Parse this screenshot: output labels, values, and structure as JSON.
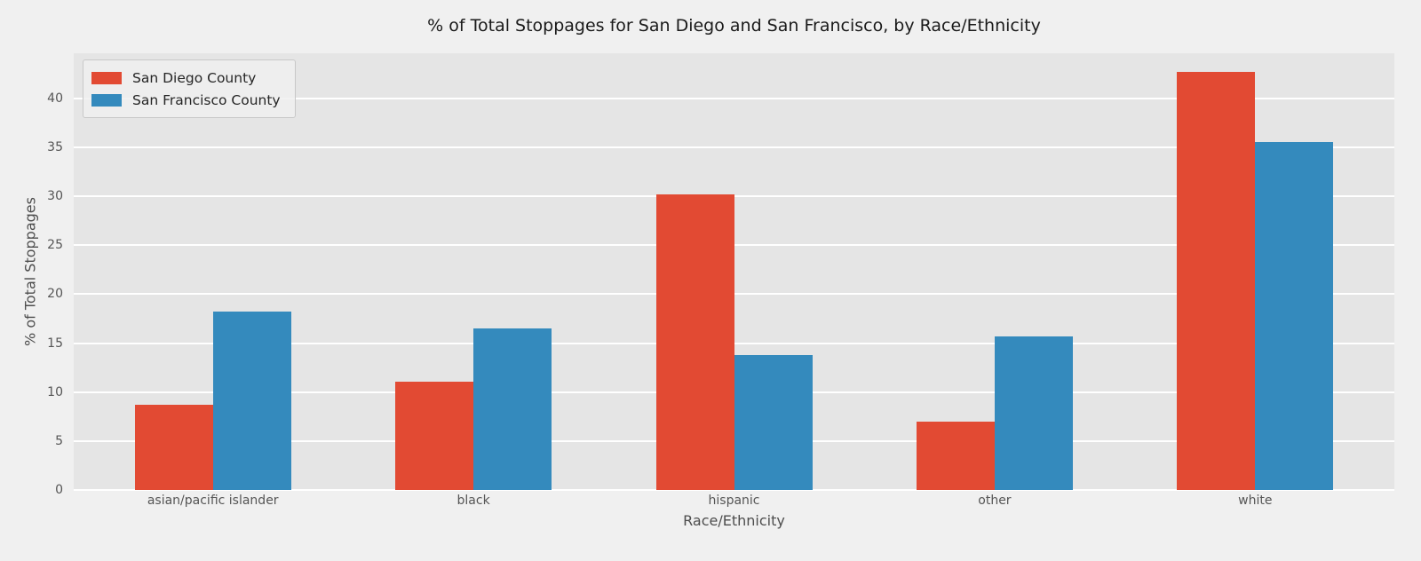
{
  "chart_data": {
    "type": "bar",
    "title": "% of Total Stoppages for San Diego and San Francisco, by Race/Ethnicity",
    "xlabel": "Race/Ethnicity",
    "ylabel": "% of Total Stoppages",
    "categories": [
      "asian/pacific islander",
      "black",
      "hispanic",
      "other",
      "white"
    ],
    "series": [
      {
        "name": "San Diego County",
        "color": "#E24A33",
        "values": [
          8.7,
          11.1,
          30.2,
          7.0,
          42.7
        ]
      },
      {
        "name": "San Francisco County",
        "color": "#348ABD",
        "values": [
          18.2,
          16.5,
          13.8,
          15.7,
          35.5
        ]
      }
    ],
    "ylim": [
      0,
      44.6
    ],
    "yticks": [
      0,
      5,
      10,
      15,
      20,
      25,
      30,
      35,
      40
    ],
    "grid": true,
    "legend_position": "upper left",
    "colors": {
      "figure_bg": "#F0F0F0",
      "axes_bg": "#E5E5E5",
      "grid": "#FFFFFF",
      "tick_text": "#555555",
      "title_text": "#1A1A1A",
      "legend_bg": "#F0F0F0",
      "legend_border": "#C8C8C8"
    }
  }
}
